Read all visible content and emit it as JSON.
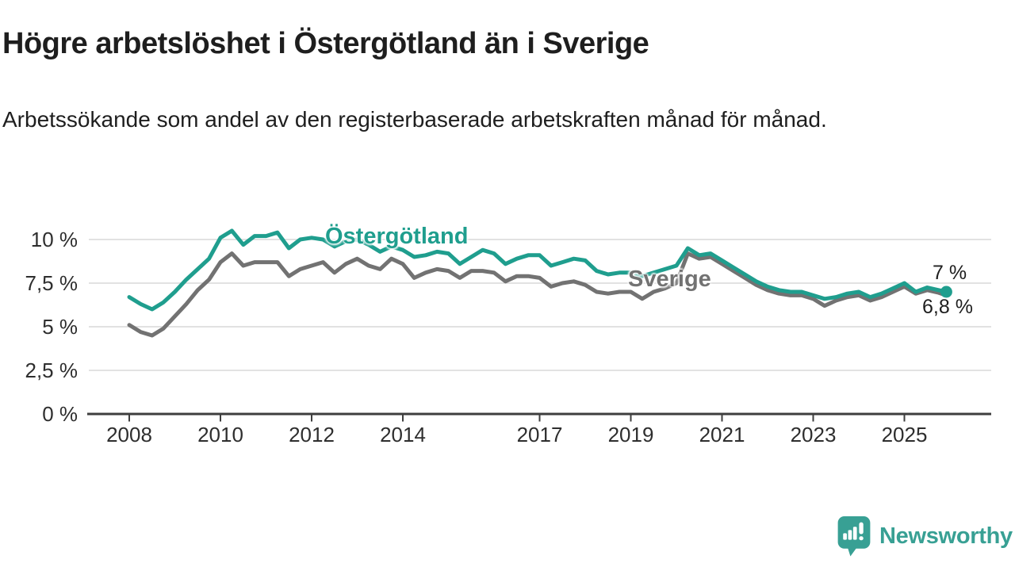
{
  "chart_data": {
    "type": "line",
    "title": "Högre arbetslöshet i Östergötland än i Sverige",
    "subtitle": "Arbetssökande som andel av den registerbaserade arbetskraften månad för månad.",
    "xlabel": "",
    "ylabel": "",
    "x_unit": "year (monthly share of registered labour force, %)",
    "ylim": [
      0,
      11
    ],
    "xlim": [
      2007.1,
      2026.9
    ],
    "grid": "horizontal",
    "legend_position": "inline-labels-on-lines",
    "y_ticks": [
      {
        "value": 0,
        "label": "0 %"
      },
      {
        "value": 2.5,
        "label": "2,5 %"
      },
      {
        "value": 5,
        "label": "5 %"
      },
      {
        "value": 7.5,
        "label": "7,5 %"
      },
      {
        "value": 10,
        "label": "10 %"
      }
    ],
    "x_ticks": [
      {
        "value": 2008,
        "label": "2008"
      },
      {
        "value": 2010,
        "label": "2010"
      },
      {
        "value": 2012,
        "label": "2012"
      },
      {
        "value": 2014,
        "label": "2014"
      },
      {
        "value": 2017,
        "label": "2017"
      },
      {
        "value": 2019,
        "label": "2019"
      },
      {
        "value": 2021,
        "label": "2021"
      },
      {
        "value": 2023,
        "label": "2023"
      },
      {
        "value": 2025,
        "label": "2025"
      }
    ],
    "x": [
      2008,
      2008.25,
      2008.5,
      2008.75,
      2009,
      2009.25,
      2009.5,
      2009.75,
      2010,
      2010.25,
      2010.5,
      2010.75,
      2011,
      2011.25,
      2011.5,
      2011.75,
      2012,
      2012.25,
      2012.5,
      2012.75,
      2013,
      2013.25,
      2013.5,
      2013.75,
      2014,
      2014.25,
      2014.5,
      2014.75,
      2015,
      2015.25,
      2015.5,
      2015.75,
      2016,
      2016.25,
      2016.5,
      2016.75,
      2017,
      2017.25,
      2017.5,
      2017.75,
      2018,
      2018.25,
      2018.5,
      2018.75,
      2019,
      2019.25,
      2019.5,
      2019.75,
      2020,
      2020.25,
      2020.5,
      2020.75,
      2021,
      2021.25,
      2021.5,
      2021.75,
      2022,
      2022.25,
      2022.5,
      2022.75,
      2023,
      2023.25,
      2023.5,
      2023.75,
      2024,
      2024.25,
      2024.5,
      2024.75,
      2025,
      2025.25,
      2025.5,
      2025.75,
      2025.92
    ],
    "series": [
      {
        "name": "Östergötland",
        "color": "#1f9e8e",
        "end_label": "7 %",
        "end_value": 7.0,
        "end_marker": true,
        "values": [
          6.7,
          6.3,
          6.0,
          6.4,
          7.0,
          7.7,
          8.3,
          8.9,
          10.1,
          10.5,
          9.7,
          10.2,
          10.2,
          10.4,
          9.5,
          10.0,
          10.1,
          10.0,
          9.6,
          9.9,
          10.0,
          9.7,
          9.3,
          9.6,
          9.4,
          9.0,
          9.1,
          9.3,
          9.2,
          8.6,
          9.0,
          9.4,
          9.2,
          8.6,
          8.9,
          9.1,
          9.1,
          8.5,
          8.7,
          8.9,
          8.8,
          8.2,
          8.0,
          8.1,
          8.1,
          7.9,
          8.1,
          8.3,
          8.5,
          9.5,
          9.1,
          9.2,
          8.8,
          8.4,
          8.0,
          7.6,
          7.3,
          7.1,
          7.0,
          7.0,
          6.8,
          6.6,
          6.7,
          6.9,
          7.0,
          6.7,
          6.9,
          7.2,
          7.5,
          7.0,
          7.25,
          7.1,
          7.0
        ]
      },
      {
        "name": "Sverige",
        "color": "#727272",
        "end_label": "6,8 %",
        "end_value": 6.8,
        "end_marker": false,
        "values": [
          5.1,
          4.7,
          4.5,
          4.9,
          5.6,
          6.3,
          7.1,
          7.7,
          8.7,
          9.2,
          8.5,
          8.7,
          8.7,
          8.7,
          7.9,
          8.3,
          8.5,
          8.7,
          8.1,
          8.6,
          8.9,
          8.5,
          8.3,
          8.9,
          8.6,
          7.8,
          8.1,
          8.3,
          8.2,
          7.8,
          8.2,
          8.2,
          8.1,
          7.6,
          7.9,
          7.9,
          7.8,
          7.3,
          7.5,
          7.6,
          7.4,
          7.0,
          6.9,
          7.0,
          7.0,
          6.6,
          7.0,
          7.2,
          7.5,
          9.2,
          8.9,
          9.0,
          8.6,
          8.2,
          7.8,
          7.4,
          7.1,
          6.9,
          6.8,
          6.8,
          6.6,
          6.2,
          6.5,
          6.7,
          6.8,
          6.5,
          6.7,
          7.0,
          7.3,
          6.9,
          7.1,
          6.95,
          6.8
        ]
      }
    ]
  },
  "footer": {
    "brand": "Newsworthy"
  },
  "colors": {
    "accent_teal": "#1f9e8e",
    "series_gray": "#727272",
    "grid_line": "#d9d9d9",
    "axis_line": "#3e3e3e",
    "tick_label": "#2e2e2e",
    "text_dark": "#1e1e1e",
    "logo_teal": "#38a094"
  }
}
